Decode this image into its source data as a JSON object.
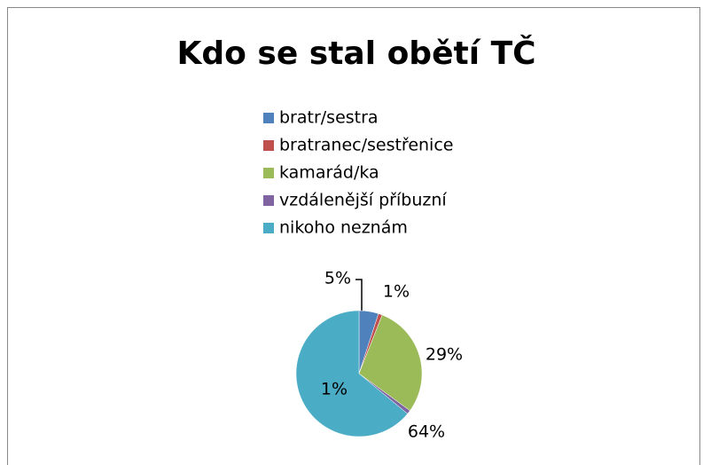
{
  "chart_data": {
    "type": "pie",
    "title": "Kdo se stal obětí TČ",
    "categories": [
      "bratr/sestra",
      "bratranec/sestřenice",
      "kamarád/ka",
      "vzdálenější příbuzní",
      "nikoho neznám"
    ],
    "values": [
      5,
      1,
      29,
      1,
      64
    ],
    "value_labels": [
      "5%",
      "1%",
      "29%",
      "1%",
      "64%"
    ],
    "colors": [
      "#4f81bd",
      "#c0504d",
      "#9bbb59",
      "#8064a2",
      "#4bacc6"
    ],
    "legend": "top"
  }
}
